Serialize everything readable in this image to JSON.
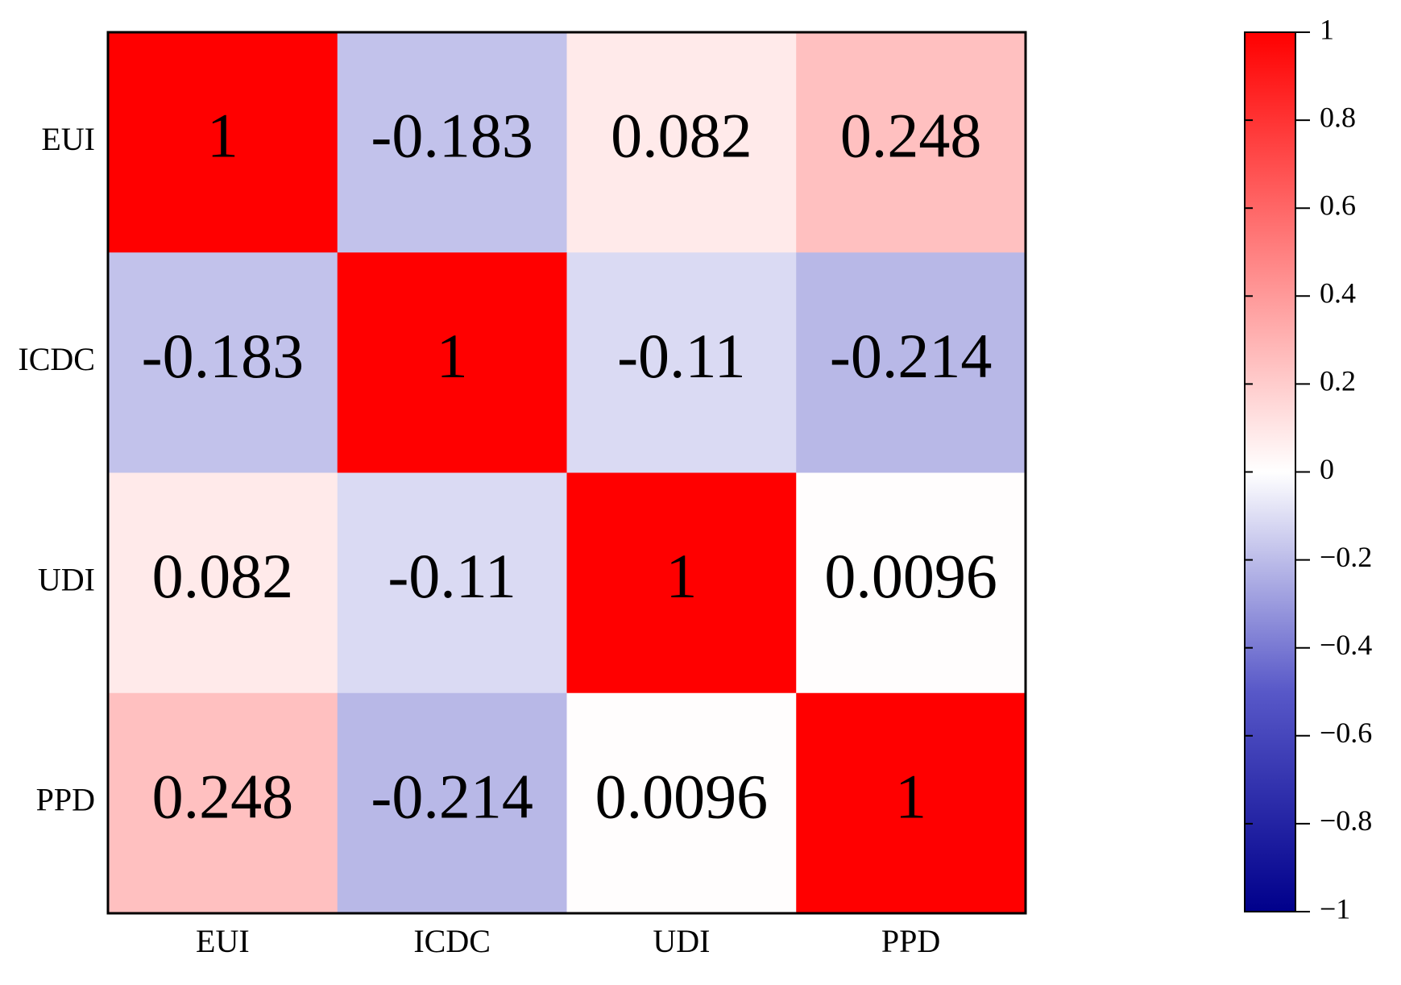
{
  "chart_data": {
    "type": "heatmap",
    "x_categories": [
      "EUI",
      "ICDC",
      "UDI",
      "PPD"
    ],
    "y_categories": [
      "EUI",
      "ICDC",
      "UDI",
      "PPD"
    ],
    "values": [
      [
        1,
        -0.183,
        0.082,
        0.248
      ],
      [
        -0.183,
        1,
        -0.11,
        -0.214
      ],
      [
        0.082,
        -0.11,
        1,
        0.0096
      ],
      [
        0.248,
        -0.214,
        0.0096,
        1
      ]
    ],
    "colormap": [
      "#00008b",
      "#5858c8",
      "#ffffff",
      "#ff8080",
      "#ff0000"
    ],
    "clim": [
      -1,
      1
    ],
    "cticks": [
      1,
      0.8,
      0.6,
      0.4,
      0.2,
      0,
      {
        "value": -0.2,
        "label": "−0.2"
      },
      {
        "value": -0.4,
        "label": "−0.4"
      },
      {
        "value": -0.6,
        "label": "−0.6"
      },
      {
        "value": -0.8,
        "label": "−0.8"
      },
      {
        "value": -1,
        "label": "−1"
      }
    ]
  }
}
